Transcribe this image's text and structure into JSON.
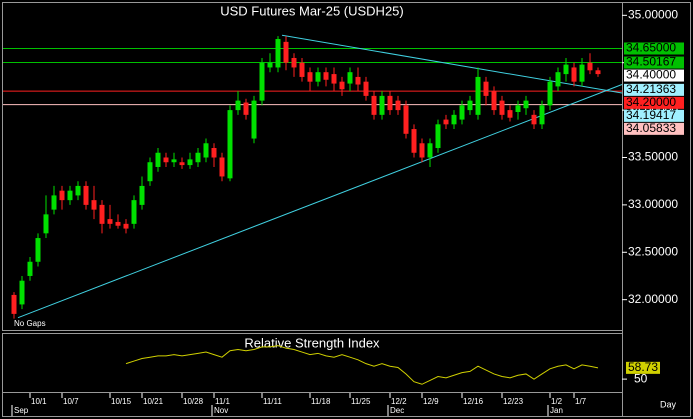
{
  "chart_data": [
    {
      "type": "candlestick",
      "title": "USD Futures Mar-25 (USDH25)",
      "note": "No Gaps",
      "x_unit": "Day",
      "up_color": "#00e000",
      "down_color": "#ff2020",
      "title_color": "#ffff00",
      "ylim": [
        31.68,
        35.13
      ],
      "yticks": [
        {
          "value": 32,
          "label": "32.00000"
        },
        {
          "value": 32.5,
          "label": "32.50000"
        },
        {
          "value": 33,
          "label": "33.00000"
        },
        {
          "value": 33.5,
          "label": "33.50000"
        },
        {
          "value": 34,
          "label": "34.00000"
        },
        {
          "value": 34.5,
          "label": "34.50000"
        },
        {
          "value": 35,
          "label": "35.00000"
        }
      ],
      "xticks": [
        {
          "value": 2,
          "label": "10/1"
        },
        {
          "value": 6,
          "label": "10/7"
        },
        {
          "value": 12,
          "label": "10/15"
        },
        {
          "value": 16,
          "label": "10/21"
        },
        {
          "value": 21,
          "label": "10/28"
        },
        {
          "value": 25,
          "label": "11/1"
        },
        {
          "value": 31,
          "label": "11/11"
        },
        {
          "value": 37,
          "label": "11/18"
        },
        {
          "value": 42,
          "label": "11/25"
        },
        {
          "value": 47,
          "label": "12/2"
        },
        {
          "value": 51,
          "label": "12/9"
        },
        {
          "value": 56,
          "label": "12/16"
        },
        {
          "value": 61,
          "label": "12/23"
        },
        {
          "value": 67,
          "label": "1/2"
        },
        {
          "value": 70,
          "label": "1/7"
        }
      ],
      "month_ticks": [
        {
          "value": 0,
          "label": "Sep"
        },
        {
          "value": 25,
          "label": "Nov"
        },
        {
          "value": 47,
          "label": "Dec"
        },
        {
          "value": 67,
          "label": "Jan"
        }
      ],
      "open": [
        32.05,
        31.95,
        32.25,
        32.4,
        32.7,
        32.95,
        33.15,
        33.05,
        33.1,
        33.2,
        33.05,
        33.0,
        32.85,
        32.82,
        32.8,
        32.8,
        33.0,
        33.25,
        33.4,
        33.5,
        33.45,
        33.45,
        33.42,
        33.45,
        33.5,
        33.6,
        33.5,
        33.28,
        34.0,
        34.08,
        33.7,
        34.1,
        34.45,
        34.45,
        34.72,
        34.55,
        34.5,
        34.4,
        34.3,
        34.4,
        34.38,
        34.3,
        34.28,
        34.35,
        34.3,
        34.15,
        33.95,
        34.15,
        34.1,
        34.05,
        33.8,
        33.65,
        33.5,
        33.6,
        33.9,
        33.85,
        33.9,
        34.0,
        33.95,
        34.3,
        34.2,
        34.1,
        34.0,
        33.98,
        34.02,
        33.95,
        33.85,
        34.05,
        34.25,
        34.38,
        34.45,
        34.3,
        34.5,
        34.42
      ],
      "high": [
        32.08,
        32.25,
        32.45,
        32.7,
        33.1,
        33.2,
        33.2,
        33.2,
        33.25,
        33.25,
        33.2,
        33.05,
        33.0,
        32.9,
        32.85,
        33.1,
        33.3,
        33.5,
        33.6,
        33.55,
        33.55,
        33.5,
        33.55,
        33.6,
        33.7,
        33.65,
        33.55,
        34.05,
        34.2,
        34.12,
        34.15,
        34.55,
        34.6,
        34.78,
        34.78,
        34.6,
        34.55,
        34.45,
        34.45,
        34.45,
        34.45,
        34.35,
        34.45,
        34.45,
        34.35,
        34.2,
        34.2,
        34.2,
        34.15,
        34.1,
        33.85,
        33.7,
        33.7,
        33.9,
        33.95,
        34.0,
        34.1,
        34.15,
        34.45,
        34.35,
        34.25,
        34.15,
        34.05,
        34.1,
        34.15,
        34.0,
        34.1,
        34.35,
        34.45,
        34.55,
        34.5,
        34.55,
        34.6,
        34.45
      ],
      "low": [
        31.8,
        31.9,
        32.2,
        32.35,
        32.65,
        32.9,
        32.95,
        33.0,
        33.05,
        32.95,
        32.85,
        32.7,
        32.75,
        32.75,
        32.7,
        32.75,
        32.95,
        33.2,
        33.35,
        33.4,
        33.4,
        33.38,
        33.38,
        33.4,
        33.45,
        33.4,
        33.25,
        33.25,
        33.95,
        33.9,
        33.65,
        34.05,
        34.4,
        34.4,
        34.42,
        34.35,
        34.3,
        34.2,
        34.25,
        34.25,
        34.2,
        34.15,
        34.2,
        34.2,
        34.1,
        33.9,
        33.9,
        33.95,
        33.95,
        33.7,
        33.5,
        33.45,
        33.4,
        33.55,
        33.8,
        33.8,
        33.85,
        33.95,
        33.9,
        34.05,
        33.95,
        33.9,
        33.88,
        33.9,
        33.95,
        33.8,
        33.8,
        34.0,
        34.2,
        34.3,
        34.25,
        34.25,
        34.38,
        34.35
      ],
      "close": [
        31.85,
        32.2,
        32.4,
        32.65,
        32.9,
        33.1,
        33.05,
        33.15,
        33.2,
        33.0,
        32.95,
        32.8,
        32.8,
        32.78,
        32.75,
        33.05,
        33.2,
        33.45,
        33.55,
        33.45,
        33.48,
        33.42,
        33.48,
        33.55,
        33.65,
        33.5,
        33.3,
        34.0,
        34.1,
        33.95,
        34.1,
        34.5,
        34.5,
        34.75,
        34.5,
        34.45,
        34.35,
        34.3,
        34.4,
        34.32,
        34.28,
        34.22,
        34.4,
        34.27,
        34.15,
        33.95,
        34.15,
        34.0,
        34.0,
        33.75,
        33.55,
        33.5,
        33.65,
        33.85,
        33.85,
        33.95,
        34.05,
        34.1,
        34.35,
        34.15,
        34.0,
        33.95,
        33.92,
        34.05,
        34.1,
        33.85,
        34.05,
        34.3,
        34.4,
        34.48,
        34.3,
        34.48,
        34.42,
        34.38
      ],
      "trendlines": [
        {
          "color": "#40d0e0",
          "x": [
            0.5,
            76
          ],
          "y": [
            31.81,
            34.27
          ]
        },
        {
          "color": "#40d0e0",
          "x": [
            33.5,
            76
          ],
          "y": [
            34.79,
            34.18
          ]
        }
      ],
      "price_labels": [
        {
          "value": 34.65,
          "label": "34.65000",
          "color": "#00c000",
          "line": true
        },
        {
          "value": 34.50167,
          "label": "34.50167",
          "color": "#00c000",
          "line": true
        },
        {
          "value": 34.4,
          "label": "34.40000",
          "color": "#ffffff",
          "line": false
        },
        {
          "value": 34.21363,
          "label": "34.21363",
          "color": "#a0f0ff",
          "line": false
        },
        {
          "value": 34.2,
          "label": "34.20000",
          "color": "#ff2020",
          "line": true
        },
        {
          "value": 34.19417,
          "label": "34.19417",
          "color": "#a0f0ff",
          "line": false
        },
        {
          "value": 34.05833,
          "label": "34.05833",
          "color": "#ffc0c0",
          "line": true
        }
      ]
    },
    {
      "type": "line",
      "title": "Relative Strength Index",
      "color": "#d0d000",
      "ylim": [
        40,
        85
      ],
      "yticks": [
        50
      ],
      "last": 58.73,
      "values": [
        null,
        null,
        null,
        null,
        null,
        null,
        null,
        null,
        null,
        null,
        null,
        null,
        null,
        null,
        62,
        64,
        66,
        67,
        68,
        68,
        69,
        68,
        69,
        70,
        71,
        69,
        67,
        72,
        73,
        72,
        73,
        75,
        75,
        76,
        74,
        73,
        71,
        69,
        70,
        68,
        67,
        69,
        67,
        65,
        62,
        60,
        62,
        60,
        59,
        54,
        48,
        46,
        49,
        52,
        51,
        53,
        55,
        56,
        60,
        57,
        54,
        52,
        51,
        53,
        54,
        50,
        54,
        58,
        60,
        61,
        58,
        61,
        60,
        58.73
      ]
    }
  ]
}
